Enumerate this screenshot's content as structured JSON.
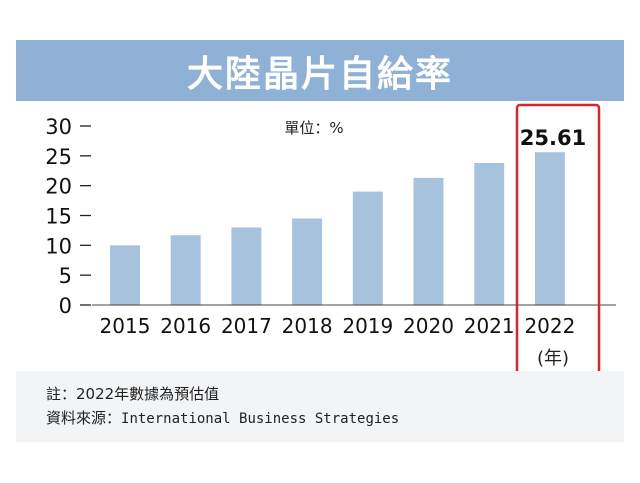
{
  "title": "大陸晶片自給率",
  "unit_label": "單位：%",
  "highlight": {
    "value_label": "25.61",
    "year_suffix": "(年)"
  },
  "notes": {
    "line1": "註：2022年數據為預估值",
    "line2_prefix": "資料來源：",
    "line2_source": "International Business Strategies"
  },
  "colors": {
    "bar": "#a7c2dc",
    "title_bg": "#8fb1d5",
    "highlight": "#d6262c"
  },
  "chart_data": {
    "type": "bar",
    "title": "大陸晶片自給率",
    "unit": "單位：%",
    "categories": [
      "2015",
      "2016",
      "2017",
      "2018",
      "2019",
      "2020",
      "2021",
      "2022"
    ],
    "values": [
      10.0,
      11.7,
      13.0,
      14.5,
      19.0,
      21.3,
      23.8,
      25.61
    ],
    "yticks": [
      "0",
      "5",
      "10",
      "15",
      "20",
      "25",
      "30"
    ],
    "ylim": [
      0,
      30
    ],
    "data_labels": [
      {
        "category": "2022",
        "text": "25.61"
      }
    ],
    "grid": false,
    "legend": "none"
  }
}
